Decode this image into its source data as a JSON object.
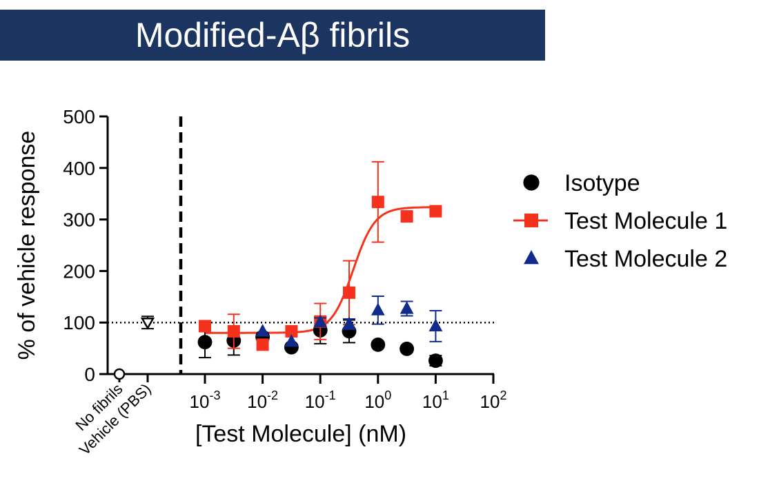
{
  "chart_data": {
    "type": "scatter",
    "title": "Modified-Aβ fibrils",
    "xlabel": "[Test Molecule] (nM)",
    "ylabel": "% of vehicle response",
    "x_scale": "log10",
    "xlim_log10": [
      -3.5,
      2
    ],
    "ylim": [
      0,
      500
    ],
    "yticks": [
      0,
      100,
      200,
      300,
      400,
      500
    ],
    "xticks": [
      {
        "base": "10",
        "exp": "-3",
        "log10": -3
      },
      {
        "base": "10",
        "exp": "-2",
        "log10": -2
      },
      {
        "base": "10",
        "exp": "-1",
        "log10": -1
      },
      {
        "base": "10",
        "exp": "0",
        "log10": 0
      },
      {
        "base": "10",
        "exp": "1",
        "log10": 1
      },
      {
        "base": "10",
        "exp": "2",
        "log10": 2
      }
    ],
    "reference_line_y": 100,
    "controls": [
      {
        "label": "No fibrils",
        "y": 0,
        "err": 0,
        "marker": "open-circle"
      },
      {
        "label": "Vehicle (PBS)",
        "y": 100,
        "err": 12,
        "marker": "open-triangle-down"
      }
    ],
    "series": [
      {
        "name": "Isotype",
        "marker": "circle",
        "color": "#000000",
        "x_log10": [
          -3,
          -2.5,
          -2,
          -1.5,
          -1,
          -0.5,
          0,
          0.5,
          1
        ],
        "y": [
          62,
          65,
          72,
          52,
          85,
          83,
          57,
          49,
          26
        ],
        "err": [
          30,
          28,
          8,
          6,
          26,
          22,
          0,
          0,
          10
        ]
      },
      {
        "name": "Test Molecule 1",
        "marker": "square",
        "color": "#f5321d",
        "x_log10": [
          -3,
          -2.5,
          -2,
          -1.5,
          -1,
          -0.5,
          0,
          0.5,
          1
        ],
        "y": [
          93,
          83,
          57,
          83,
          102,
          158,
          334,
          306,
          316
        ],
        "err": [
          8,
          33,
          0,
          0,
          35,
          62,
          78,
          8,
          5
        ],
        "fit": {
          "bottom": 80,
          "top": 324,
          "log_ec50": -0.43,
          "hill": 2.3
        }
      },
      {
        "name": "Test Molecule 2",
        "marker": "triangle",
        "color": "#102b8c",
        "x_log10": [
          -2,
          -1.5,
          -1,
          -0.5,
          0,
          0.5,
          1
        ],
        "y": [
          83,
          63,
          101,
          97,
          124,
          127,
          93
        ],
        "err": [
          0,
          0,
          8,
          10,
          27,
          14,
          30
        ]
      }
    ]
  }
}
